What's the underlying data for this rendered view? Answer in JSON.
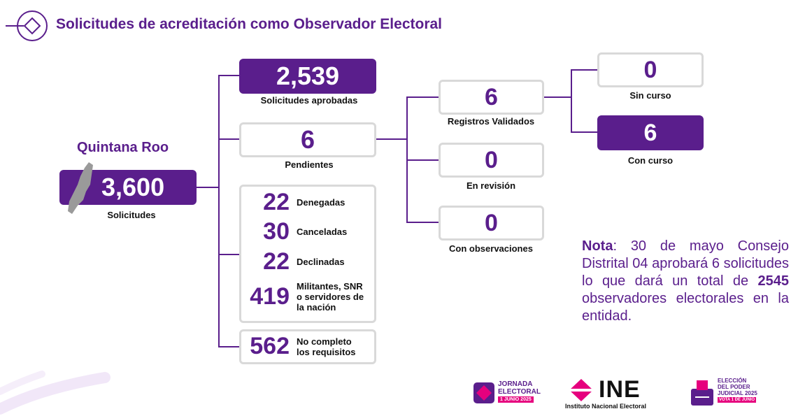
{
  "header": {
    "title": "Solicitudes de acreditación como Observador Electoral"
  },
  "state": {
    "name": "Quintana Roo",
    "total": "3,600",
    "total_label": "Solicitudes"
  },
  "aprobadas": {
    "value": "2,539",
    "label": "Solicitudes aprobadas"
  },
  "pendientes": {
    "value": "6",
    "label": "Pendientes"
  },
  "rechazos": [
    {
      "value": "22",
      "label": "Denegadas"
    },
    {
      "value": "30",
      "label": "Canceladas"
    },
    {
      "value": "22",
      "label": "Declinadas"
    },
    {
      "value": "419",
      "label": "Militantes, SNR\no servidores de\nla nación"
    }
  ],
  "incompletos": {
    "value": "562",
    "label": "No completo\nlos requisitos"
  },
  "validados": {
    "value": "6",
    "label": "Registros Validados"
  },
  "revision": {
    "value": "0",
    "label": "En revisión"
  },
  "observaciones": {
    "value": "0",
    "label": "Con observaciones"
  },
  "sin_curso": {
    "value": "0",
    "label": "Sin curso"
  },
  "con_curso": {
    "value": "6",
    "label": "Con curso"
  },
  "note": {
    "bold_lead": "Nota",
    "text_1": ": 30 de mayo Consejo Distrital 04 aprobará 6 solicitudes  lo que dará  un total de ",
    "bold_num": "2545",
    "text_2": " observadores electorales en la entidad."
  },
  "logos": {
    "jornada": [
      "JORNADA",
      "ELECTORAL",
      "1 JUNIO 2025"
    ],
    "ine": "INE",
    "ine_sub": "Instituto Nacional Electoral",
    "eleccion": [
      "ELECCIÓN",
      "DEL PODER",
      "JUDICIAL 2025",
      "VOTA 1 DE JUNIO"
    ]
  },
  "colors": {
    "primary": "#5a1e8c",
    "accent": "#e6007e",
    "border": "#d9d9d9"
  }
}
